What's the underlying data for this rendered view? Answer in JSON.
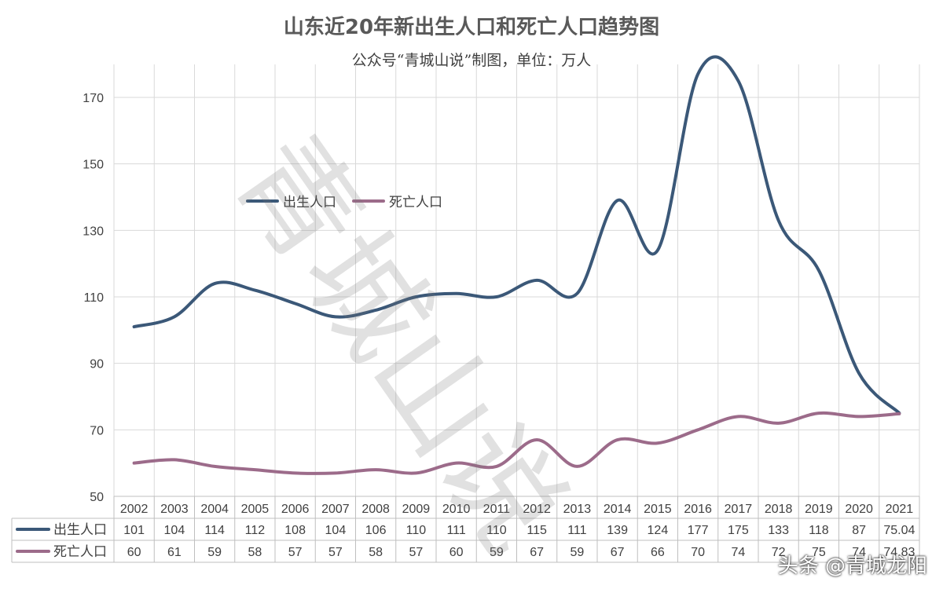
{
  "chart_data": {
    "type": "line",
    "title": "山东近20年新出生人口和死亡人口趋势图",
    "subtitle": "公众号“青城山说”制图，单位：万人",
    "categories": [
      "2002",
      "2003",
      "2004",
      "2005",
      "2006",
      "2007",
      "2008",
      "2009",
      "2010",
      "2011",
      "2012",
      "2013",
      "2014",
      "2015",
      "2016",
      "2017",
      "2018",
      "2019",
      "2020",
      "2021"
    ],
    "series": [
      {
        "name": "出生人口",
        "color": "#3b5878",
        "values": [
          101,
          104,
          114,
          112,
          108,
          104,
          106,
          110,
          111,
          110,
          115,
          111,
          139,
          124,
          177,
          175,
          133,
          118,
          87,
          75.04
        ],
        "labels": [
          "101",
          "104",
          "114",
          "112",
          "108",
          "104",
          "106",
          "110",
          "111",
          "110",
          "115",
          "111",
          "139",
          "124",
          "177",
          "175",
          "133",
          "118",
          "87",
          "75.04"
        ]
      },
      {
        "name": "死亡人口",
        "color": "#9c6b8a",
        "values": [
          60,
          61,
          59,
          58,
          57,
          57,
          58,
          57,
          60,
          59,
          67,
          59,
          67,
          66,
          70,
          74,
          72,
          75,
          74,
          74.83
        ],
        "labels": [
          "60",
          "61",
          "59",
          "58",
          "57",
          "57",
          "58",
          "57",
          "60",
          "59",
          "67",
          "59",
          "67",
          "66",
          "70",
          "74",
          "72",
          "75",
          "74",
          "74.83"
        ]
      }
    ],
    "y_ticks": [
      50,
      70,
      90,
      110,
      130,
      150,
      170
    ],
    "ylim": [
      50,
      180
    ],
    "grid": true,
    "legend_position": "upper-left-inside",
    "data_table": true
  },
  "watermark": "青城山说",
  "attribution": "头条 @青城龙阳"
}
